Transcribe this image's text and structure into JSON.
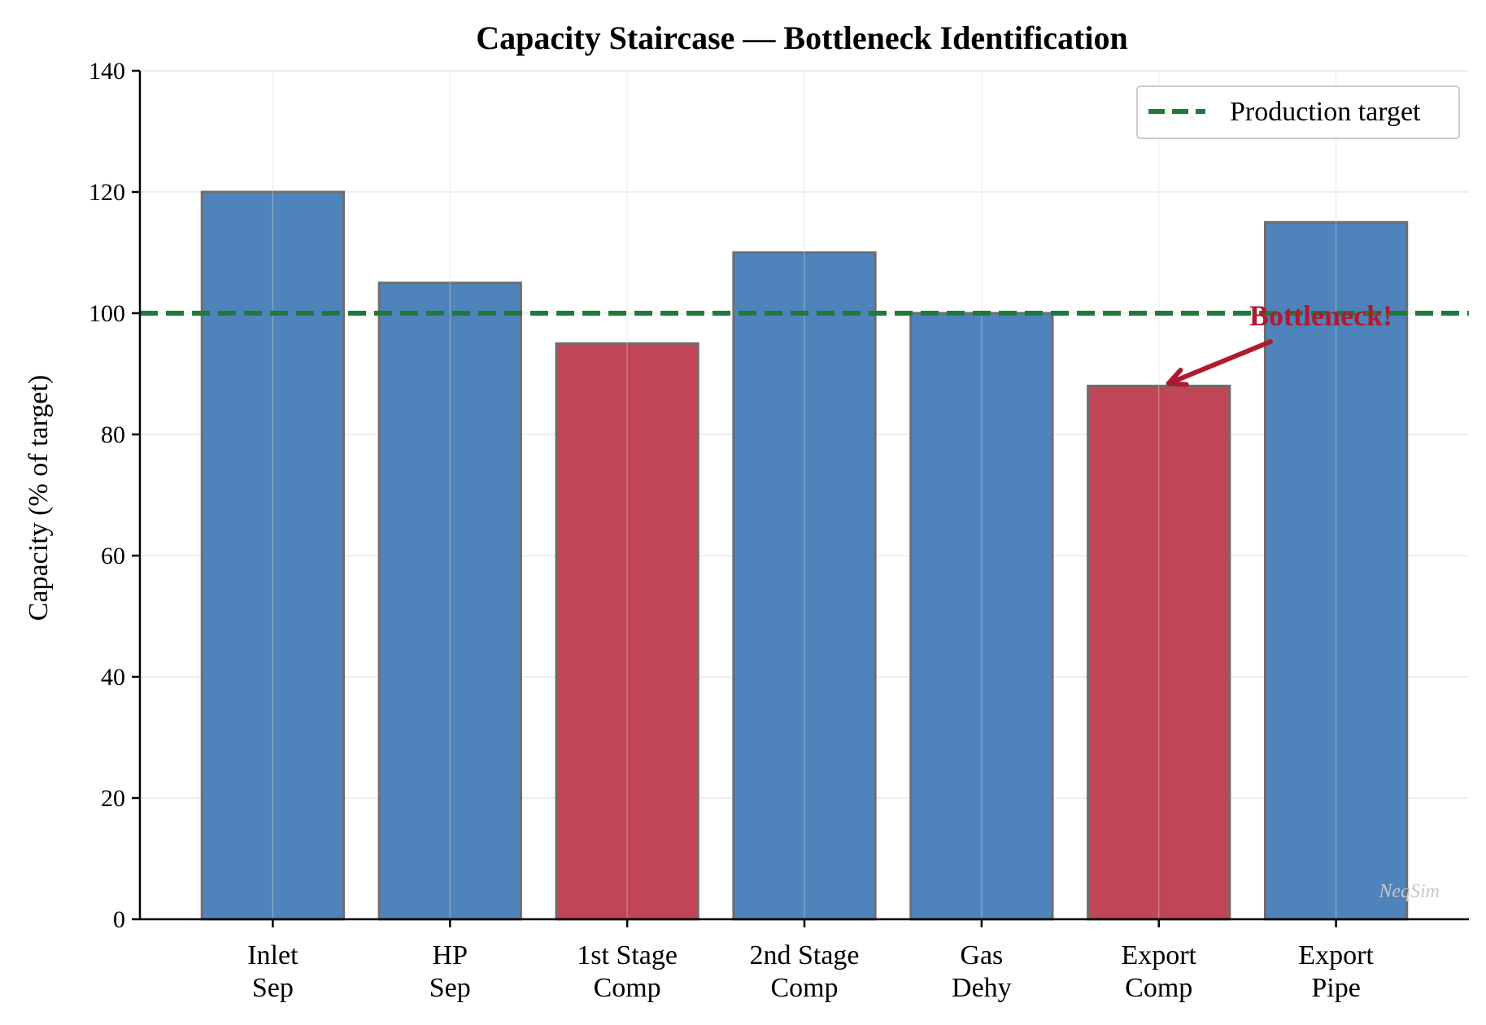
{
  "chart_data": {
    "type": "bar",
    "title": "Capacity Staircase — Bottleneck Identification",
    "ylabel": "Capacity (% of target)",
    "xlabel": "",
    "ylim": [
      0,
      140
    ],
    "yticks": [
      0,
      20,
      40,
      60,
      80,
      100,
      120,
      140
    ],
    "categories": [
      [
        "Inlet",
        "Sep"
      ],
      [
        "HP",
        "Sep"
      ],
      [
        "1st Stage",
        "Comp"
      ],
      [
        "2nd Stage",
        "Comp"
      ],
      [
        "Gas",
        "Dehy"
      ],
      [
        "Export",
        "Comp"
      ],
      [
        "Export",
        "Pipe"
      ]
    ],
    "values": [
      120,
      105,
      95,
      110,
      100,
      88,
      115
    ],
    "bar_colors": [
      "#4f83bc",
      "#4f83bc",
      "#c04556",
      "#4f83bc",
      "#4f83bc",
      "#c04556",
      "#4f83bc"
    ],
    "bar_edge_color": "#6e6e6e",
    "grid": true,
    "reference_line": {
      "y": 100,
      "label": "Production target",
      "color": "#1e7a3c",
      "style": "dashed"
    },
    "legend": {
      "position": "top-right",
      "entries": [
        "Production target"
      ]
    },
    "annotation": {
      "text": "Bottleneck!",
      "target_category_index": 5,
      "target_value": 88,
      "color": "#b01a30"
    },
    "watermark": "NeqSim"
  }
}
